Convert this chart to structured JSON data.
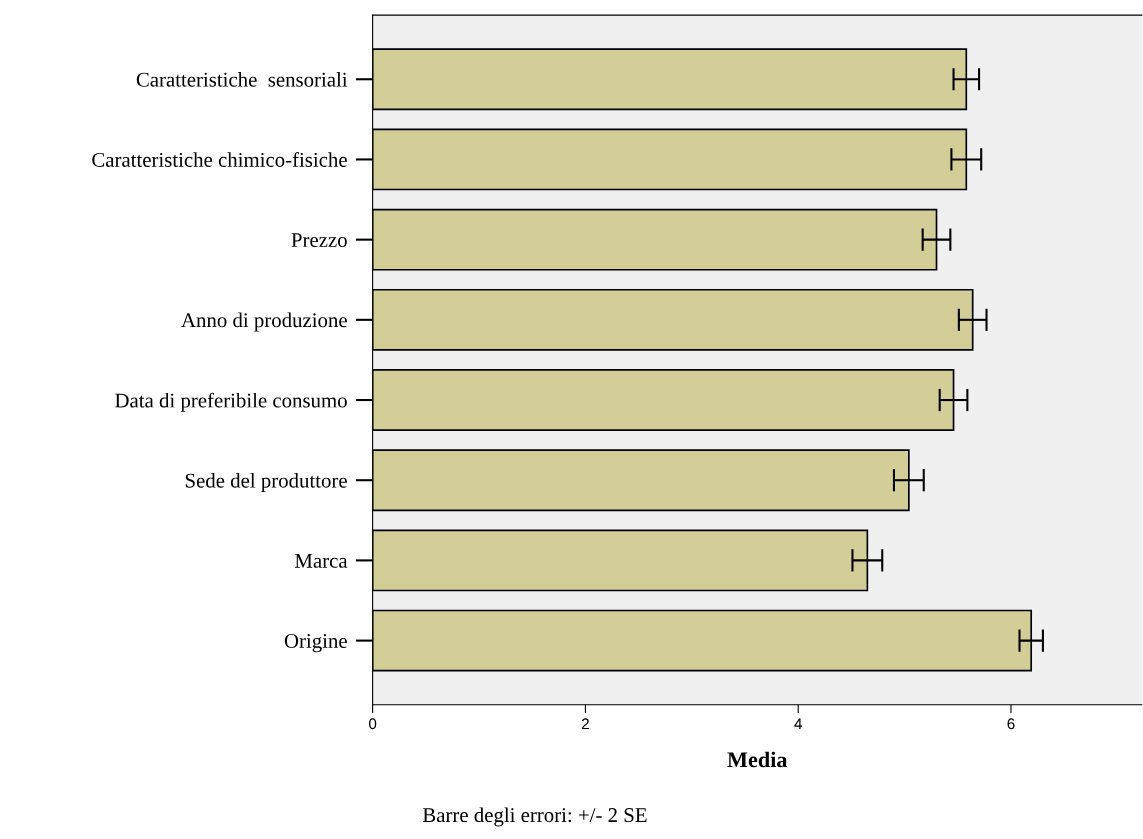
{
  "chart_data": {
    "type": "bar",
    "orientation": "horizontal",
    "xlabel": "Media",
    "categories": [
      "Caratteristiche  sensoriali",
      "Caratteristiche chimico-fisiche",
      "Prezzo",
      "Anno di produzione",
      "Data di preferibile consumo",
      "Sede del produttore",
      "Marca",
      "Origine"
    ],
    "values": [
      5.58,
      5.58,
      5.3,
      5.64,
      5.46,
      5.04,
      4.65,
      6.19
    ],
    "errors": [
      0.12,
      0.14,
      0.13,
      0.13,
      0.13,
      0.14,
      0.14,
      0.11
    ],
    "color": "#d3cd98",
    "xlim": [
      0,
      7.23
    ],
    "xticks": [
      0,
      2,
      4,
      6
    ],
    "grid": false,
    "annotations": [
      "Barre degli errori: +/- 2 SE"
    ]
  }
}
